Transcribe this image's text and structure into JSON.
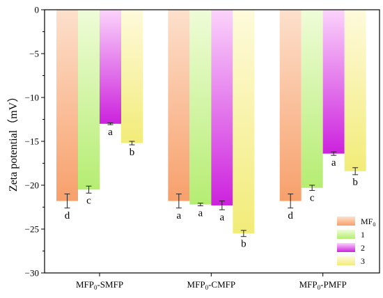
{
  "chart_data": {
    "type": "bar",
    "title": "",
    "xlabel": "",
    "ylabel": "Zeta potential（mV）",
    "ylim": [
      -30,
      0
    ],
    "yticks": [
      0,
      -5,
      -10,
      -15,
      -20,
      -25,
      -30
    ],
    "grid": false,
    "legend_position": "bottom-right",
    "categories": [
      {
        "base": "MFP",
        "sub": "0",
        "suffix": "-SMFP"
      },
      {
        "base": "MFP",
        "sub": "0",
        "suffix": "-CMFP"
      },
      {
        "base": "MFP",
        "sub": "0",
        "suffix": "-PMFP"
      }
    ],
    "series": [
      {
        "name": "MF",
        "name_sub": "0",
        "values": [
          -21.8,
          -21.8,
          -21.8
        ],
        "errors": [
          0.8,
          0.8,
          0.8
        ],
        "letters": [
          "d",
          "a",
          "d"
        ],
        "color_top": "#fde0cc",
        "color_bottom": "#f7a06b"
      },
      {
        "name": "1",
        "name_sub": "",
        "values": [
          -20.5,
          -22.2,
          -20.3
        ],
        "errors": [
          0.4,
          0.15,
          0.3
        ],
        "letters": [
          "c",
          "a",
          "c"
        ],
        "color_top": "#effcd8",
        "color_bottom": "#b5ed72"
      },
      {
        "name": "2",
        "name_sub": "",
        "values": [
          -13.0,
          -22.3,
          -16.4
        ],
        "errors": [
          0.1,
          0.5,
          0.2
        ],
        "letters": [
          "a",
          "a",
          "a"
        ],
        "color_top": "#fbd3fb",
        "color_bottom": "#cc22dd"
      },
      {
        "name": "3",
        "name_sub": "",
        "values": [
          -15.2,
          -25.5,
          -18.4
        ],
        "errors": [
          0.2,
          0.35,
          0.4
        ],
        "letters": [
          "b",
          "b",
          "b"
        ],
        "color_top": "#fefadc",
        "color_bottom": "#f2ec78"
      }
    ]
  }
}
